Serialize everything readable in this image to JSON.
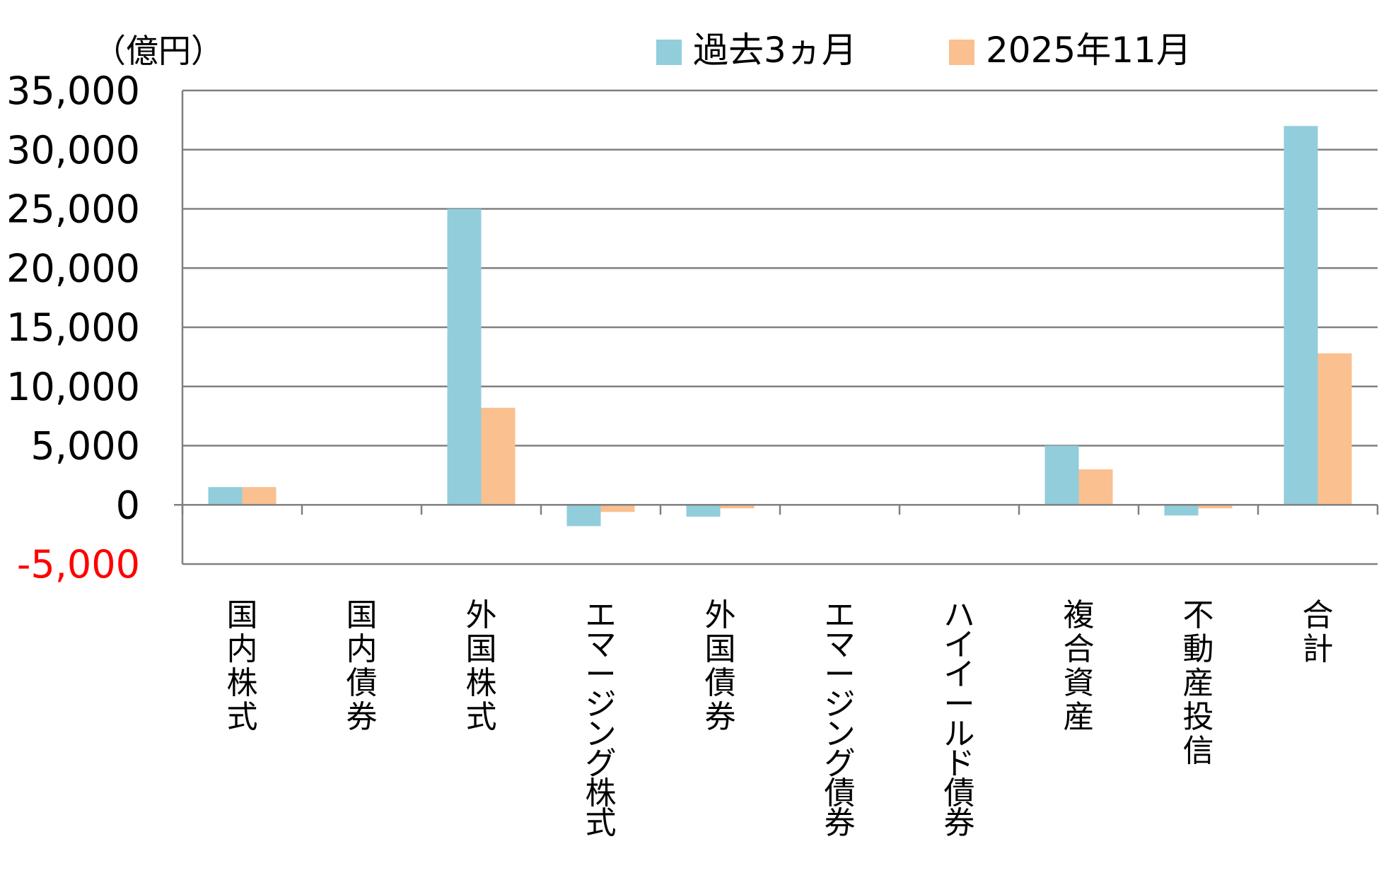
{
  "chart_data": {
    "type": "bar",
    "unit_label": "（億円）",
    "categories": [
      "国内株式",
      "国内債券",
      "外国株式",
      "エマージング株式",
      "外国債券",
      "エマージング債券",
      "ハイイールド債券",
      "複合資産",
      "不動産投信",
      "合計"
    ],
    "series": [
      {
        "name": "過去3ヵ月",
        "color": "#92CDDC",
        "values": [
          1500,
          0,
          25000,
          -1800,
          -1000,
          0,
          0,
          5000,
          -900,
          32000
        ]
      },
      {
        "name": "2025年11月",
        "color": "#FAC090",
        "values": [
          1500,
          0,
          8200,
          -600,
          -300,
          0,
          0,
          3000,
          -300,
          12800
        ]
      }
    ],
    "ylim": [
      -5000,
      35000
    ],
    "yticks": [
      35000,
      30000,
      25000,
      20000,
      15000,
      10000,
      5000,
      0,
      -5000
    ],
    "ytick_labels": [
      "35,000",
      "30,000",
      "25,000",
      "20,000",
      "15,000",
      "10,000",
      "5,000",
      "0",
      "-5,000"
    ],
    "negative_tick_color": "#FF0000",
    "grid": true,
    "gridline_color": "#808080",
    "legend_position": "top-right",
    "xlabel": "",
    "ylabel": ""
  }
}
